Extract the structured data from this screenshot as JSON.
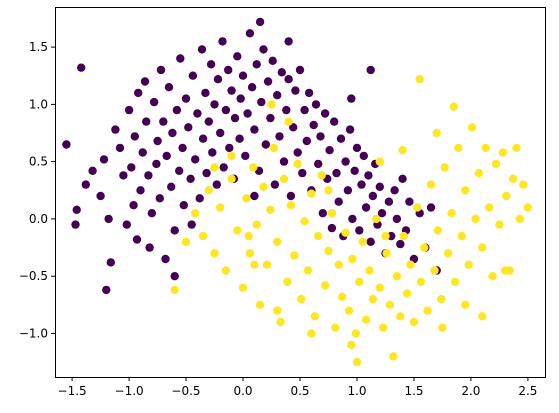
{
  "chart_data": {
    "type": "scatter",
    "title": "",
    "xlabel": "",
    "ylabel": "",
    "xlim": [
      -1.65,
      2.65
    ],
    "ylim": [
      -1.38,
      1.85
    ],
    "xticks": [
      -1.5,
      -1.0,
      -0.5,
      0.0,
      0.5,
      1.0,
      1.5,
      2.0,
      2.5
    ],
    "xtick_labels": [
      "−1.5",
      "−1.0",
      "−0.5",
      "0.0",
      "0.5",
      "1.0",
      "1.5",
      "2.0",
      "2.5"
    ],
    "yticks": [
      -1.0,
      -0.5,
      0.0,
      0.5,
      1.0,
      1.5
    ],
    "ytick_labels": [
      "−1.0",
      "−0.5",
      "0.0",
      "0.5",
      "1.0",
      "1.5"
    ],
    "grid": false,
    "legend": "none",
    "colors": {
      "class_0": "#440154",
      "class_1": "#fde725"
    },
    "series": [
      {
        "color": "#440154",
        "points": [
          [
            -1.55,
            0.65
          ],
          [
            -1.47,
            -0.05
          ],
          [
            -1.46,
            0.08
          ],
          [
            -1.42,
            1.32
          ],
          [
            -1.38,
            0.3
          ],
          [
            -1.32,
            0.42
          ],
          [
            -1.25,
            0.2
          ],
          [
            -1.22,
            0.52
          ],
          [
            -1.18,
            0.0
          ],
          [
            -1.16,
            -0.38
          ],
          [
            -1.12,
            0.78
          ],
          [
            -1.08,
            0.62
          ],
          [
            -1.05,
            0.38
          ],
          [
            -1.02,
            -0.05
          ],
          [
            -1.0,
            0.95
          ],
          [
            -0.98,
            0.45
          ],
          [
            -0.96,
            0.12
          ],
          [
            -0.95,
            0.72
          ],
          [
            -0.93,
            -0.18
          ],
          [
            -0.92,
            1.1
          ],
          [
            -0.9,
            0.25
          ],
          [
            -0.88,
            0.58
          ],
          [
            -0.86,
            1.2
          ],
          [
            -0.85,
            0.85
          ],
          [
            -0.83,
            0.38
          ],
          [
            -0.82,
            -0.25
          ],
          [
            -0.8,
            0.05
          ],
          [
            -0.78,
            1.02
          ],
          [
            -0.76,
            0.48
          ],
          [
            -0.75,
            0.68
          ],
          [
            -0.73,
            0.18
          ],
          [
            -0.72,
            1.3
          ],
          [
            -0.7,
            0.85
          ],
          [
            -0.68,
            -0.35
          ],
          [
            -0.67,
            0.55
          ],
          [
            -0.65,
            1.15
          ],
          [
            -0.63,
            0.28
          ],
          [
            -0.62,
            0.75
          ],
          [
            -0.6,
            -0.1
          ],
          [
            -0.58,
            0.95
          ],
          [
            -0.56,
            0.42
          ],
          [
            -0.55,
            1.4
          ],
          [
            -0.53,
            0.62
          ],
          [
            -0.52,
            0.12
          ],
          [
            -0.5,
            1.05
          ],
          [
            -0.48,
            0.8
          ],
          [
            -0.46,
            0.35
          ],
          [
            -0.45,
            -0.05
          ],
          [
            -0.44,
            1.25
          ],
          [
            -0.42,
            0.52
          ],
          [
            -0.4,
            0.92
          ],
          [
            -0.38,
            0.18
          ],
          [
            -0.36,
            1.48
          ],
          [
            -0.35,
            0.7
          ],
          [
            -0.33,
            1.1
          ],
          [
            -0.32,
            0.4
          ],
          [
            -0.3,
            0.85
          ],
          [
            -0.28,
            1.35
          ],
          [
            -0.27,
            0.58
          ],
          [
            -0.25,
            1.0
          ],
          [
            -0.23,
            0.3
          ],
          [
            -0.22,
            1.22
          ],
          [
            -0.2,
            0.75
          ],
          [
            -0.18,
            1.55
          ],
          [
            -0.17,
            0.45
          ],
          [
            -0.15,
            0.95
          ],
          [
            -0.13,
            1.3
          ],
          [
            -0.12,
            0.62
          ],
          [
            -0.1,
            1.12
          ],
          [
            -0.08,
            0.35
          ],
          [
            -0.07,
            0.88
          ],
          [
            -0.05,
            1.42
          ],
          [
            -0.03,
            0.7
          ],
          [
            -0.02,
            1.05
          ],
          [
            0.0,
            1.25
          ],
          [
            0.02,
            0.55
          ],
          [
            0.04,
            0.92
          ],
          [
            0.06,
            1.62
          ],
          [
            0.08,
            1.15
          ],
          [
            0.1,
            0.78
          ],
          [
            0.12,
            1.35
          ],
          [
            0.14,
            0.42
          ],
          [
            0.16,
            1.02
          ],
          [
            0.18,
            1.48
          ],
          [
            0.2,
            0.65
          ],
          [
            0.22,
            1.2
          ],
          [
            0.24,
            0.88
          ],
          [
            0.26,
            1.38
          ],
          [
            0.28,
            0.3
          ],
          [
            0.3,
            1.08
          ],
          [
            0.32,
            0.72
          ],
          [
            0.34,
            1.28
          ],
          [
            0.36,
            0.5
          ],
          [
            0.38,
            0.95
          ],
          [
            0.4,
            1.22
          ],
          [
            0.42,
            0.2
          ],
          [
            0.44,
            0.8
          ],
          [
            0.46,
            1.12
          ],
          [
            0.48,
            0.58
          ],
          [
            0.5,
            1.3
          ],
          [
            0.52,
            0.4
          ],
          [
            0.54,
            0.95
          ],
          [
            0.56,
            0.68
          ],
          [
            0.58,
            1.1
          ],
          [
            0.6,
            0.25
          ],
          [
            0.62,
            0.82
          ],
          [
            0.64,
            1.0
          ],
          [
            0.66,
            0.48
          ],
          [
            0.68,
            0.72
          ],
          [
            0.7,
            0.05
          ],
          [
            0.72,
            0.92
          ],
          [
            0.74,
            0.35
          ],
          [
            0.76,
            0.6
          ],
          [
            0.78,
            -0.08
          ],
          [
            0.8,
            0.85
          ],
          [
            0.82,
            0.4
          ],
          [
            0.84,
            0.15
          ],
          [
            0.86,
            0.7
          ],
          [
            0.88,
            -0.15
          ],
          [
            0.9,
            0.5
          ],
          [
            0.92,
            0.25
          ],
          [
            0.94,
            0.78
          ],
          [
            0.96,
            0.0
          ],
          [
            0.98,
            0.42
          ],
          [
            1.0,
            0.62
          ],
          [
            1.02,
            -0.1
          ],
          [
            1.04,
            0.3
          ],
          [
            1.06,
            0.55
          ],
          [
            1.08,
            0.1
          ],
          [
            1.1,
            0.38
          ],
          [
            1.12,
            -0.2
          ],
          [
            1.14,
            0.2
          ],
          [
            1.16,
            0.48
          ],
          [
            1.18,
            -0.05
          ],
          [
            1.2,
            0.28
          ],
          [
            1.22,
            0.05
          ],
          [
            1.25,
            -0.3
          ],
          [
            1.28,
            0.15
          ],
          [
            1.3,
            -0.15
          ],
          [
            1.33,
            0.25
          ],
          [
            1.35,
            0.0
          ],
          [
            1.38,
            -0.22
          ],
          [
            1.4,
            0.35
          ],
          [
            1.43,
            -0.1
          ],
          [
            1.46,
            0.15
          ],
          [
            1.5,
            -0.35
          ],
          [
            1.55,
            0.05
          ],
          [
            1.6,
            -0.25
          ],
          [
            1.65,
            0.1
          ],
          [
            1.7,
            -0.45
          ],
          [
            1.12,
            1.3
          ],
          [
            0.95,
            1.05
          ],
          [
            0.4,
            1.55
          ],
          [
            0.15,
            1.72
          ],
          [
            0.1,
            0.2
          ],
          [
            -0.6,
            -0.5
          ],
          [
            -1.2,
            -0.62
          ]
        ]
      },
      {
        "color": "#fde725",
        "points": [
          [
            -0.6,
            -0.62
          ],
          [
            -0.5,
            -0.2
          ],
          [
            -0.42,
            0.05
          ],
          [
            -0.35,
            -0.15
          ],
          [
            -0.3,
            0.25
          ],
          [
            -0.25,
            -0.3
          ],
          [
            -0.2,
            0.1
          ],
          [
            -0.15,
            -0.45
          ],
          [
            -0.1,
            0.35
          ],
          [
            -0.05,
            -0.1
          ],
          [
            0.0,
            -0.6
          ],
          [
            0.03,
            0.18
          ],
          [
            0.06,
            -0.3
          ],
          [
            0.09,
            0.45
          ],
          [
            0.12,
            -0.05
          ],
          [
            0.15,
            -0.75
          ],
          [
            0.18,
            0.28
          ],
          [
            0.21,
            -0.4
          ],
          [
            0.24,
            0.08
          ],
          [
            0.27,
            0.62
          ],
          [
            0.3,
            -0.2
          ],
          [
            0.33,
            -0.9
          ],
          [
            0.36,
            0.35
          ],
          [
            0.39,
            -0.55
          ],
          [
            0.42,
            0.12
          ],
          [
            0.45,
            -0.32
          ],
          [
            0.48,
            0.48
          ],
          [
            0.51,
            -0.7
          ],
          [
            0.54,
            -0.02
          ],
          [
            0.57,
            -0.45
          ],
          [
            0.6,
            0.22
          ],
          [
            0.63,
            -0.85
          ],
          [
            0.66,
            -0.15
          ],
          [
            0.69,
            0.38
          ],
          [
            0.72,
            -0.58
          ],
          [
            0.75,
            -0.28
          ],
          [
            0.78,
            0.05
          ],
          [
            0.81,
            -0.95
          ],
          [
            0.84,
            -0.4
          ],
          [
            0.87,
            -0.68
          ],
          [
            0.9,
            -0.12
          ],
          [
            0.93,
            -0.8
          ],
          [
            0.96,
            -0.35
          ],
          [
            0.99,
            -1.0
          ],
          [
            1.02,
            -0.55
          ],
          [
            1.05,
            -0.2
          ],
          [
            1.08,
            -0.88
          ],
          [
            1.11,
            -0.45
          ],
          [
            1.14,
            -0.7
          ],
          [
            1.17,
            0.0
          ],
          [
            1.2,
            -0.6
          ],
          [
            1.23,
            -0.95
          ],
          [
            1.26,
            -0.3
          ],
          [
            1.29,
            -0.75
          ],
          [
            1.32,
            -1.2
          ],
          [
            1.35,
            -0.5
          ],
          [
            1.38,
            -0.85
          ],
          [
            1.41,
            -0.15
          ],
          [
            1.44,
            -0.65
          ],
          [
            1.47,
            -0.4
          ],
          [
            1.5,
            -0.9
          ],
          [
            1.53,
            0.1
          ],
          [
            1.56,
            -0.55
          ],
          [
            1.59,
            -0.25
          ],
          [
            1.62,
            -0.8
          ],
          [
            1.65,
            0.3
          ],
          [
            1.68,
            -0.45
          ],
          [
            1.71,
            -0.1
          ],
          [
            1.74,
            -0.7
          ],
          [
            1.77,
            0.45
          ],
          [
            1.8,
            -0.3
          ],
          [
            1.83,
            0.05
          ],
          [
            1.86,
            -0.55
          ],
          [
            1.89,
            0.62
          ],
          [
            1.92,
            -0.15
          ],
          [
            1.95,
            0.25
          ],
          [
            1.98,
            -0.4
          ],
          [
            2.01,
            0.8
          ],
          [
            2.04,
            0.0
          ],
          [
            2.07,
            0.4
          ],
          [
            2.1,
            -0.25
          ],
          [
            2.13,
            0.62
          ],
          [
            2.16,
            0.1
          ],
          [
            2.19,
            -0.5
          ],
          [
            2.22,
            0.48
          ],
          [
            2.25,
            -0.05
          ],
          [
            2.28,
            0.58
          ],
          [
            2.31,
            0.2
          ],
          [
            2.34,
            -0.45
          ],
          [
            2.37,
            0.35
          ],
          [
            2.4,
            0.62
          ],
          [
            2.43,
            0.0
          ],
          [
            2.46,
            0.3
          ],
          [
            2.5,
            0.1
          ],
          [
            1.55,
            1.22
          ],
          [
            1.85,
            0.98
          ],
          [
            1.7,
            0.75
          ],
          [
            1.4,
            0.6
          ],
          [
            1.2,
            0.5
          ],
          [
            0.95,
            -1.1
          ],
          [
            0.6,
            -1.0
          ],
          [
            0.3,
            -0.8
          ],
          [
            0.1,
            -0.4
          ],
          [
            -0.1,
            0.55
          ],
          [
            0.4,
            0.85
          ],
          [
            0.25,
            1.0
          ],
          [
            1.0,
            -1.25
          ],
          [
            2.3,
            -0.45
          ],
          [
            2.1,
            -0.85
          ],
          [
            1.95,
            -0.75
          ],
          [
            1.75,
            -0.95
          ],
          [
            1.25,
            -0.15
          ],
          [
            0.75,
            0.25
          ],
          [
            0.05,
            -0.15
          ],
          [
            -0.25,
            0.45
          ]
        ]
      }
    ]
  }
}
